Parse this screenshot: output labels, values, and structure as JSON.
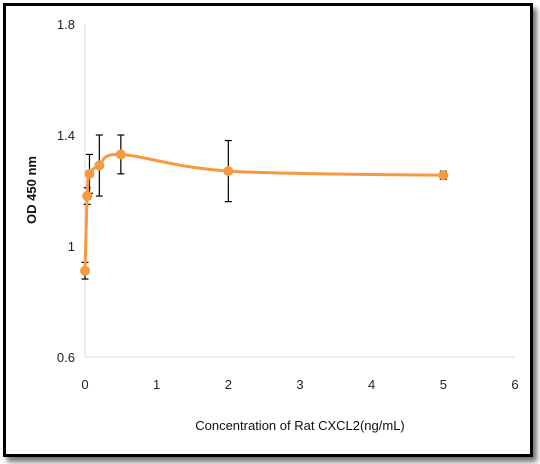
{
  "chart_data": {
    "type": "line",
    "title": "",
    "xlabel": "Concentration of Rat CXCL2(ng/mL)",
    "ylabel": "OD 450 nm",
    "xlim": [
      0,
      6
    ],
    "ylim": [
      0.6,
      1.8
    ],
    "xticks": [
      "0",
      "1",
      "2",
      "3",
      "4",
      "5",
      "6"
    ],
    "yticks": [
      "0.6",
      "1",
      "1.4",
      "1.8"
    ],
    "grid": false,
    "smooth": true,
    "series_color": "#F59A40",
    "series": [
      {
        "x": [
          0,
          0.031,
          0.0625,
          0.2,
          0.5,
          2,
          5
        ],
        "y": [
          0.911,
          1.18,
          1.26,
          1.29,
          1.33,
          1.27,
          1.255
        ],
        "err": [
          0.03,
          0.03,
          0.07,
          0.11,
          0.07,
          0.11,
          0.015
        ]
      }
    ]
  }
}
